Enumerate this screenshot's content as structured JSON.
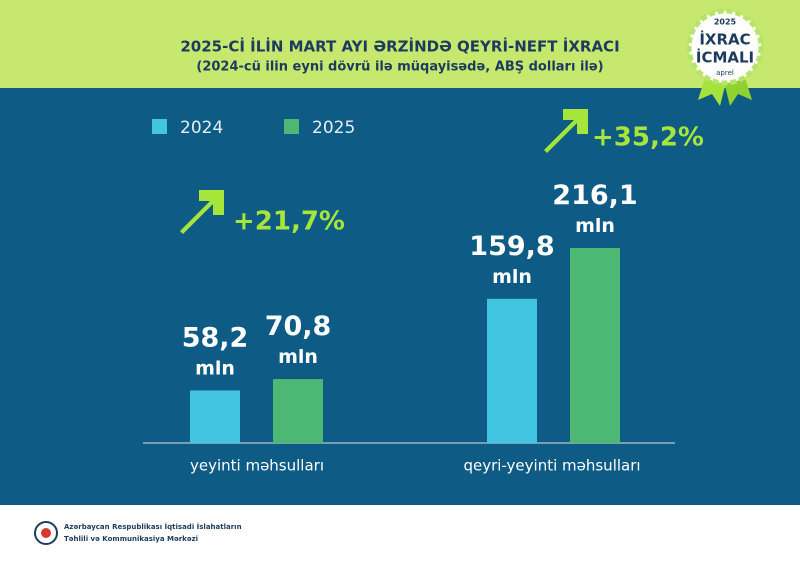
{
  "header": {
    "title": "2025-Cİ İLİN MART AYI ƏRZİNDƏ QEYRİ-NEFT İXRACI",
    "subtitle": "(2024-cü ilin eyni dövrü ilə müqayisədə, ABŞ dolları ilə)"
  },
  "badge": {
    "year": "2025",
    "line1": "İXRAC",
    "line2": "İCMALI",
    "month": "aprel"
  },
  "chart_data": {
    "type": "bar",
    "categories": [
      "yeyinti məhsulları",
      "qeyri-yeyinti məhsulları"
    ],
    "series": [
      {
        "name": "2024",
        "color": "#41c5e1",
        "values": [
          58.2,
          159.8
        ],
        "value_labels": [
          "58,2 mln",
          "159,8 mln"
        ]
      },
      {
        "name": "2025",
        "color": "#4cb873",
        "values": [
          70.8,
          216.1
        ],
        "value_labels": [
          "70,8 mln",
          "216,1 mln"
        ]
      }
    ],
    "annotations": [
      "+21,7%",
      "+35,2%"
    ]
  },
  "footer": {
    "line1": "Azərbaycan Respublikası İqtisadi İslahatların",
    "line2": "Təhlili və Kommunikasiya Mərkəzi"
  }
}
